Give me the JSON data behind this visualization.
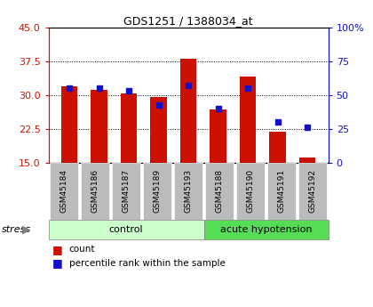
{
  "title": "GDS1251 / 1388034_at",
  "samples": [
    "GSM45184",
    "GSM45186",
    "GSM45187",
    "GSM45189",
    "GSM45193",
    "GSM45188",
    "GSM45190",
    "GSM45191",
    "GSM45192"
  ],
  "counts": [
    32.0,
    31.2,
    30.4,
    29.5,
    38.0,
    26.8,
    34.2,
    21.8,
    16.2
  ],
  "percentiles": [
    55,
    55,
    53,
    43,
    57,
    40,
    55,
    30,
    26
  ],
  "ylim_left": [
    15,
    45
  ],
  "ylim_right": [
    0,
    100
  ],
  "yticks_left": [
    15,
    22.5,
    30,
    37.5,
    45
  ],
  "yticks_right": [
    0,
    25,
    50,
    75,
    100
  ],
  "n_control": 5,
  "n_acute": 4,
  "group_labels": [
    "control",
    "acute hypotension"
  ],
  "bar_color": "#cc1100",
  "blue_color": "#1111cc",
  "control_bg_light": "#ccffcc",
  "acute_bg": "#55dd55",
  "tick_bg": "#bbbbbb",
  "stress_label": "stress",
  "legend_count": "count",
  "legend_pct": "percentile rank within the sample",
  "bar_width": 0.55,
  "fig_width": 4.2,
  "fig_height": 3.45,
  "dpi": 100
}
